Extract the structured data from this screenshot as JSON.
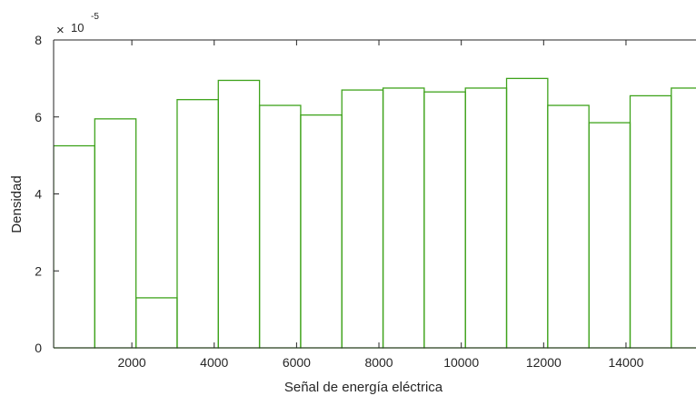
{
  "chart_data": {
    "type": "histogram",
    "xlabel": "Señal de energía eléctrica",
    "ylabel": "Densidad",
    "y_exponent_label": {
      "times": "×",
      "base": "10",
      "exp": "-5"
    },
    "xlim": [
      100,
      15700
    ],
    "ylim": [
      0,
      8
    ],
    "x_ticks": [
      2000,
      4000,
      6000,
      8000,
      10000,
      12000,
      14000
    ],
    "y_ticks": [
      0,
      2,
      4,
      6,
      8
    ],
    "bin_edges": [
      100,
      1100,
      2100,
      3100,
      4100,
      5100,
      6100,
      7100,
      8100,
      9100,
      10100,
      11100,
      12100,
      13100,
      14100,
      15100,
      16100
    ],
    "values": [
      5.25,
      5.95,
      1.3,
      6.45,
      6.95,
      6.3,
      6.05,
      6.7,
      6.75,
      6.65,
      6.75,
      7.0,
      6.3,
      5.85,
      6.55,
      6.75
    ],
    "bar_color": "#3fa31c",
    "grid": false
  }
}
